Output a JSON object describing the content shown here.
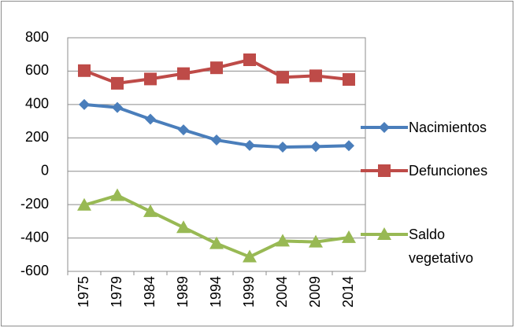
{
  "chart_data": {
    "type": "line",
    "categories": [
      "1975",
      "1979",
      "1984",
      "1989",
      "1994",
      "1999",
      "2004",
      "2009",
      "2014"
    ],
    "series": [
      {
        "name": "Nacimientos",
        "color": "#4a7ebb",
        "marker": "diamond",
        "values": [
          400,
          382,
          312,
          248,
          187,
          155,
          145,
          148,
          153
        ]
      },
      {
        "name": "Defunciones",
        "color": "#be4b48",
        "marker": "square",
        "values": [
          603,
          527,
          553,
          585,
          620,
          668,
          563,
          572,
          550
        ]
      },
      {
        "name": "Saldo vegetativo",
        "color": "#98b954",
        "marker": "triangle",
        "values": [
          -203,
          -145,
          -241,
          -337,
          -433,
          -513,
          -418,
          -424,
          -397
        ]
      }
    ],
    "ylim": [
      -600,
      800
    ],
    "yticks": [
      -600,
      -400,
      -200,
      0,
      200,
      400,
      600,
      800
    ],
    "grid": true,
    "legend": "right"
  }
}
